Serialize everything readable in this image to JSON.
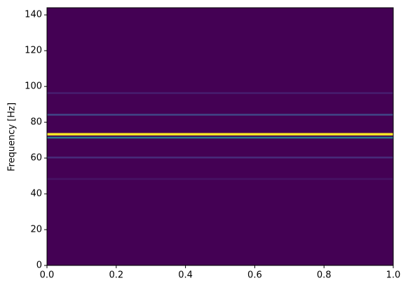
{
  "chart_data": {
    "type": "spectrogram",
    "ylabel": "Frequency [Hz]",
    "y": [
      96.3,
      84.2,
      73.3,
      71.4,
      60.3,
      48.3
    ],
    "values": [
      0.08,
      0.2,
      1.0,
      0.4,
      0.12,
      0.05
    ],
    "cmap": "viridis",
    "xlim": [
      0,
      1
    ],
    "xticks": [
      {
        "value": 0,
        "label": "0.0"
      },
      {
        "value": 0.2,
        "label": "0.2"
      },
      {
        "value": 0.4,
        "label": "0.4"
      },
      {
        "value": 0.6,
        "label": "0.6"
      },
      {
        "value": 0.8,
        "label": "0.8"
      },
      {
        "value": 1,
        "label": "1.0"
      }
    ],
    "ylim": [
      0,
      144
    ],
    "yticks": [
      0,
      20,
      40,
      60,
      80,
      100,
      120,
      140
    ]
  }
}
